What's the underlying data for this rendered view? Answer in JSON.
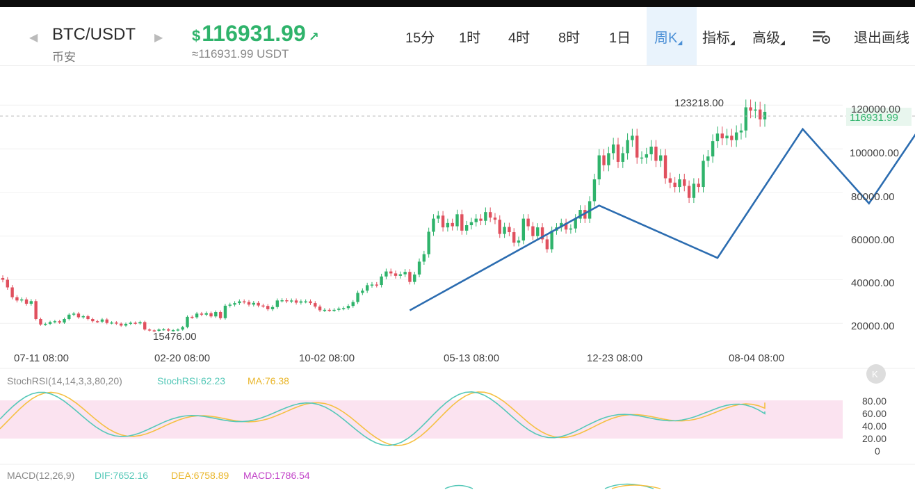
{
  "header": {
    "pair": "BTC/USDT",
    "exchange": "币安",
    "price": "116931.99",
    "currency_symbol": "$",
    "price_arrow": "↗",
    "price_usdt": "≈116931.99 USDT",
    "timeframes": [
      "15分",
      "1时",
      "4时",
      "8时",
      "1日",
      "周K"
    ],
    "active_timeframe": "周K",
    "indicators_label": "指标",
    "advanced_label": "高级",
    "settings_icon": "drawing-settings-icon",
    "exit_drawing_label": "退出画线"
  },
  "colors": {
    "up": "#2fb36b",
    "down": "#e0505e",
    "trendline": "#2b6cb0",
    "stoch_rsi_band": "#fbe3f0",
    "stoch_k": "#55c8b8",
    "stoch_d": "#f5c042",
    "macd_label": "#c243c8"
  },
  "chart_data": {
    "type": "candlestick",
    "x_tick_labels": [
      "07-11 08:00",
      "02-20 08:00",
      "10-02 08:00",
      "05-13 08:00",
      "12-23 08:00",
      "08-04 08:00"
    ],
    "y_ticks": [
      "20000.00",
      "40000.00",
      "60000.00",
      "80000.00",
      "100000.00",
      "120000.00"
    ],
    "ylim": [
      14000,
      125000
    ],
    "current_price_label": "116931.99",
    "high_marker": "123218.00",
    "low_marker": "15476.00",
    "weekly_closes": [
      40000,
      36500,
      32000,
      30500,
      31000,
      29000,
      30200,
      22000,
      19500,
      19800,
      20600,
      21000,
      20400,
      22000,
      24000,
      24500,
      22800,
      23300,
      22000,
      21000,
      20800,
      21800,
      20200,
      20400,
      19900,
      19000,
      19800,
      20300,
      20000,
      20600,
      17200,
      16800,
      16600,
      17200,
      17300,
      16700,
      16900,
      17200,
      18300,
      23000,
      22800,
      24500,
      24000,
      24700,
      23200,
      25200,
      22400,
      28100,
      28600,
      29300,
      30100,
      29800,
      28600,
      29400,
      28200,
      28000,
      26500,
      27500,
      30500,
      30600,
      30200,
      30500,
      29500,
      30100,
      30100,
      29300,
      27700,
      26000,
      26200,
      26100,
      26200,
      26800,
      27000,
      28000,
      29800,
      34000,
      35000,
      37500,
      37800,
      37600,
      41500,
      43800,
      42900,
      41800,
      42500,
      43600,
      39000,
      42400,
      48300,
      51700,
      62000,
      68000,
      69400,
      64000,
      66000,
      64500,
      70000,
      62500,
      65000,
      66400,
      68000,
      67000,
      71000,
      68500,
      67500,
      61000,
      64200,
      61800,
      57000,
      58000,
      68000,
      64500,
      60000,
      64000,
      58500,
      54000,
      62500,
      64000,
      66000,
      63000,
      63500,
      68000,
      72000,
      68000,
      76000,
      86000,
      97000,
      92500,
      98000,
      102000,
      94000,
      98000,
      104000,
      106000,
      96000,
      96000,
      97500,
      101000,
      94500,
      97000,
      86500,
      84500,
      82500,
      86000,
      83000,
      77500,
      84000,
      82500,
      94500,
      96500,
      103500,
      107000,
      104800,
      106000,
      104000,
      107500,
      108400,
      119000,
      117500,
      118000,
      113500,
      116931.99
    ],
    "stoch_rsi": {
      "label": "StochRSI(14,14,3,3,80,20)",
      "k_label": "StochRSI:62.23",
      "d_label": "MA:76.38",
      "k": 62.23,
      "d": 76.38,
      "axis": [
        "80.00",
        "60.00",
        "40.00",
        "20.00",
        "0"
      ]
    },
    "macd": {
      "label": "MACD(12,26,9)",
      "dif_label": "DIF:7652.16",
      "dea_label": "DEA:6758.89",
      "macd_label": "MACD:1786.54"
    }
  }
}
